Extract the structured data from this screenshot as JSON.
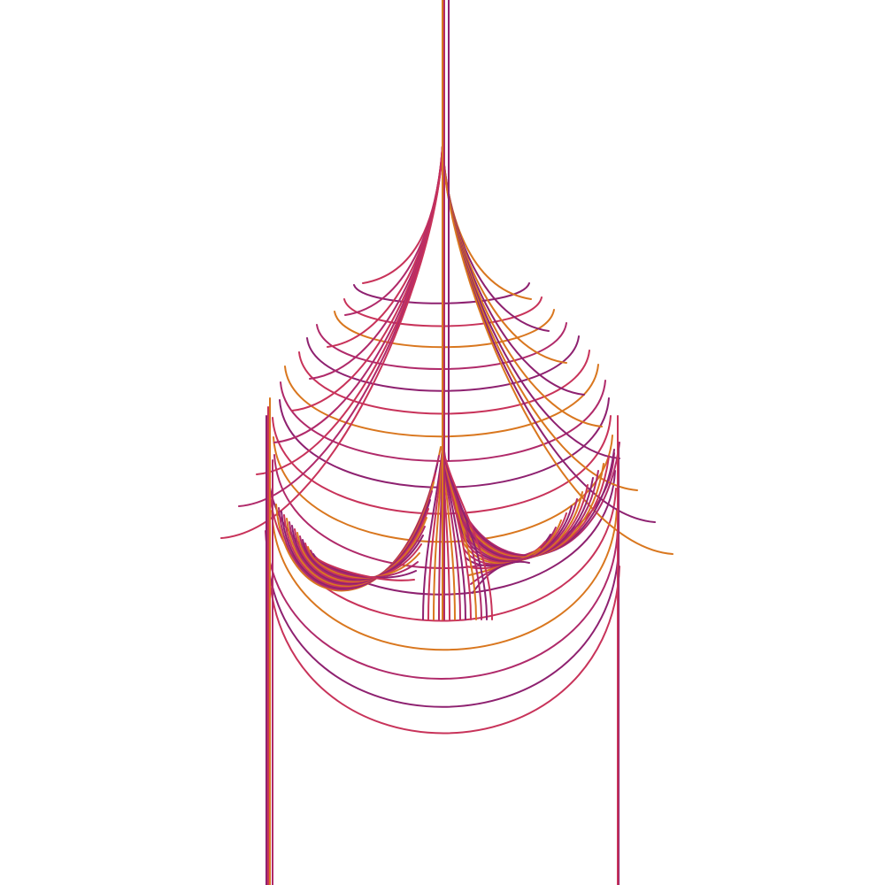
{
  "artwork": {
    "palette": {
      "orange": "#d9771f",
      "red": "#c8335a",
      "magenta": "#b02a6a",
      "purple": "#8e2170"
    },
    "background": "#ffffff",
    "line_count": 60
  }
}
